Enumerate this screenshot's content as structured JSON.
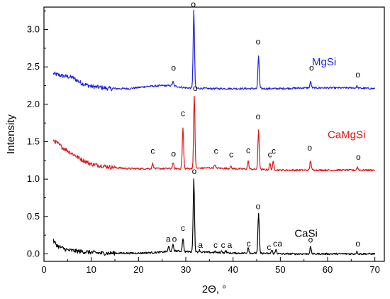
{
  "chart_data": {
    "type": "line",
    "xlabel": "2Θ, °",
    "ylabel": "Intensity",
    "xlim": [
      0,
      72
    ],
    "ylim": [
      -0.1,
      3.3
    ],
    "xticks": [
      0,
      10,
      20,
      30,
      40,
      50,
      60,
      70
    ],
    "yticks": [
      0.0,
      0.5,
      1.0,
      1.5,
      2.0,
      2.5,
      3.0
    ],
    "xtick_labels": [
      "0",
      "10",
      "20",
      "30",
      "40",
      "50",
      "60",
      "70"
    ],
    "ytick_labels": [
      "0.0",
      "0.5",
      "1.0",
      "1.5",
      "2.0",
      "2.5",
      "3.0"
    ],
    "grid": false,
    "legend": "labels placed next to each curve",
    "series": [
      {
        "name": "MgSi",
        "color": "#1f1fe6",
        "baseline": [
          [
            2,
            2.41
          ],
          [
            4,
            2.38
          ],
          [
            6,
            2.36
          ],
          [
            8,
            2.28
          ],
          [
            10,
            2.24
          ],
          [
            14,
            2.21
          ],
          [
            18,
            2.21
          ],
          [
            22,
            2.24
          ],
          [
            25,
            2.25
          ],
          [
            27,
            2.25
          ],
          [
            30,
            2.22
          ],
          [
            35,
            2.21
          ],
          [
            40,
            2.21
          ],
          [
            45,
            2.21
          ],
          [
            50,
            2.21
          ],
          [
            55,
            2.22
          ],
          [
            60,
            2.22
          ],
          [
            65,
            2.22
          ],
          [
            70,
            2.21
          ]
        ],
        "peaks": [
          [
            27.3,
            2.3
          ],
          [
            31.7,
            3.25
          ],
          [
            45.4,
            2.65
          ],
          [
            56.4,
            2.3
          ],
          [
            66.2,
            2.24
          ]
        ],
        "label_x": 56.7,
        "label_y": 2.52
      },
      {
        "name": "CaMgSi",
        "color": "#e01616",
        "baseline": [
          [
            2,
            1.52
          ],
          [
            4,
            1.42
          ],
          [
            6,
            1.34
          ],
          [
            8,
            1.26
          ],
          [
            10,
            1.2
          ],
          [
            14,
            1.16
          ],
          [
            18,
            1.14
          ],
          [
            22,
            1.14
          ],
          [
            26,
            1.14
          ],
          [
            30,
            1.14
          ],
          [
            35,
            1.15
          ],
          [
            40,
            1.14
          ],
          [
            45,
            1.13
          ],
          [
            50,
            1.12
          ],
          [
            55,
            1.12
          ],
          [
            60,
            1.12
          ],
          [
            65,
            1.12
          ],
          [
            70,
            1.12
          ]
        ],
        "peaks": [
          [
            23.0,
            1.21
          ],
          [
            27.3,
            1.22
          ],
          [
            29.4,
            1.68
          ],
          [
            31.8,
            2.1
          ],
          [
            36.1,
            1.19
          ],
          [
            39.5,
            1.17
          ],
          [
            43.2,
            1.24
          ],
          [
            45.4,
            1.66
          ],
          [
            47.8,
            1.21
          ],
          [
            48.5,
            1.23
          ],
          [
            56.4,
            1.25
          ],
          [
            66.3,
            1.16
          ]
        ],
        "label_x": 60,
        "label_y": 1.55
      },
      {
        "name": "CaSi",
        "color": "#000000",
        "baseline": [
          [
            2,
            0.17
          ],
          [
            3,
            0.1
          ],
          [
            5,
            0.05
          ],
          [
            8,
            0.03
          ],
          [
            12,
            0.01
          ],
          [
            16,
            0.01
          ],
          [
            20,
            0.01
          ],
          [
            24,
            0.02
          ],
          [
            26,
            0.03
          ],
          [
            28,
            0.04
          ],
          [
            30,
            0.03
          ],
          [
            35,
            0.02
          ],
          [
            40,
            0.01
          ],
          [
            45,
            0.01
          ],
          [
            50,
            0.0
          ],
          [
            55,
            0.0
          ],
          [
            60,
            0.0
          ],
          [
            65,
            0.0
          ],
          [
            70,
            0.0
          ]
        ],
        "peaks": [
          [
            26.4,
            0.1
          ],
          [
            27.3,
            0.12
          ],
          [
            29.4,
            0.21
          ],
          [
            31.7,
            1.0
          ],
          [
            32.9,
            0.05
          ],
          [
            36.2,
            0.03
          ],
          [
            37.6,
            0.04
          ],
          [
            38.5,
            0.04
          ],
          [
            43.2,
            0.09
          ],
          [
            45.4,
            0.54
          ],
          [
            48.2,
            0.05
          ],
          [
            49.1,
            0.06
          ],
          [
            56.4,
            0.09
          ],
          [
            66.2,
            0.03
          ]
        ],
        "label_x": 53,
        "label_y": 0.23
      }
    ],
    "annotations": [
      {
        "text": "o",
        "x": 27.4,
        "y": 2.45
      },
      {
        "text": "o",
        "x": 31.6,
        "y": 3.3
      },
      {
        "text": "o",
        "x": 45.3,
        "y": 2.8
      },
      {
        "text": "o",
        "x": 56.6,
        "y": 2.45
      },
      {
        "text": "o",
        "x": 66.4,
        "y": 2.36
      },
      {
        "text": "o",
        "x": 27.4,
        "y": 1.3
      },
      {
        "text": "c",
        "x": 23.0,
        "y": 1.34
      },
      {
        "text": "c",
        "x": 29.4,
        "y": 1.84
      },
      {
        "text": "o",
        "x": 32.0,
        "y": 2.18
      },
      {
        "text": "c",
        "x": 36.4,
        "y": 1.34
      },
      {
        "text": "c",
        "x": 39.6,
        "y": 1.29
      },
      {
        "text": "c",
        "x": 43.2,
        "y": 1.35
      },
      {
        "text": "o",
        "x": 45.3,
        "y": 1.8
      },
      {
        "text": "c",
        "x": 47.8,
        "y": 1.29
      },
      {
        "text": "c",
        "x": 48.6,
        "y": 1.34
      },
      {
        "text": "o",
        "x": 56.2,
        "y": 1.38
      },
      {
        "text": "o",
        "x": 66.5,
        "y": 1.26
      },
      {
        "text": "o",
        "x": 31.8,
        "y": 1.07
      },
      {
        "text": "c",
        "x": 29.4,
        "y": 0.31
      },
      {
        "text": "a",
        "x": 26.3,
        "y": 0.16
      },
      {
        "text": "o",
        "x": 27.6,
        "y": 0.16
      },
      {
        "text": "a",
        "x": 33.1,
        "y": 0.08
      },
      {
        "text": "c",
        "x": 36.3,
        "y": 0.08
      },
      {
        "text": "c",
        "x": 37.9,
        "y": 0.08
      },
      {
        "text": "a",
        "x": 39.3,
        "y": 0.08
      },
      {
        "text": "c",
        "x": 43.3,
        "y": 0.1
      },
      {
        "text": "o",
        "x": 45.3,
        "y": 0.6
      },
      {
        "text": "c",
        "x": 47.6,
        "y": 0.05
      },
      {
        "text": "c",
        "x": 48.9,
        "y": 0.1
      },
      {
        "text": "a",
        "x": 49.9,
        "y": 0.1
      },
      {
        "text": "o",
        "x": 56.4,
        "y": 0.15
      },
      {
        "text": "o",
        "x": 66.4,
        "y": 0.1
      }
    ]
  }
}
